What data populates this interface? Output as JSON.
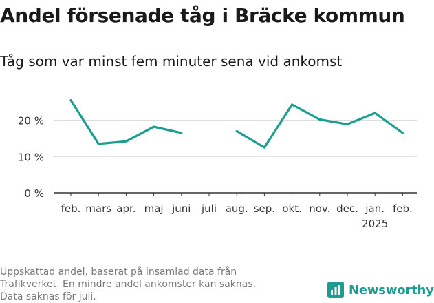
{
  "title": "Andel försenade tåg i Bräcke kommun",
  "subtitle": "Tåg som var minst fem minuter sena vid ankomst",
  "footnote": [
    "Uppskattad andel, baserat på insamlad data från",
    "Trafikverket. En mindre andel ankomster kan saknas.",
    "Data saknas för juli."
  ],
  "brand": {
    "name": "Newsworthy",
    "icon": "bar-chart-logo-icon",
    "color": "#1e9c8e"
  },
  "colors": {
    "line": "#1a9e8f",
    "grid": "#d9d9d9",
    "axis": "#333333",
    "text": "#333333"
  },
  "chart_data": {
    "type": "line",
    "title": "Andel försenade tåg i Bräcke kommun",
    "subtitle": "Tåg som var minst fem minuter sena vid ankomst",
    "xlabel": "",
    "ylabel": "",
    "ylim": [
      0,
      30
    ],
    "yticks": [
      0,
      10,
      20
    ],
    "ytick_labels": [
      "0 %",
      "10 %",
      "20 %"
    ],
    "grid": true,
    "categories": [
      "feb.",
      "mars",
      "apr.",
      "maj",
      "juni",
      "juli",
      "aug.",
      "sep.",
      "okt.",
      "nov.",
      "dec.",
      "jan.",
      "feb."
    ],
    "category_sublabels": [
      "",
      "",
      "",
      "",
      "",
      "",
      "",
      "",
      "",
      "",
      "",
      "2025",
      ""
    ],
    "series": [
      {
        "values": [
          25.5,
          13.5,
          14.2,
          18.2,
          16.5,
          null,
          17.0,
          12.5,
          24.3,
          20.2,
          18.9,
          22.0,
          16.5
        ]
      }
    ]
  }
}
